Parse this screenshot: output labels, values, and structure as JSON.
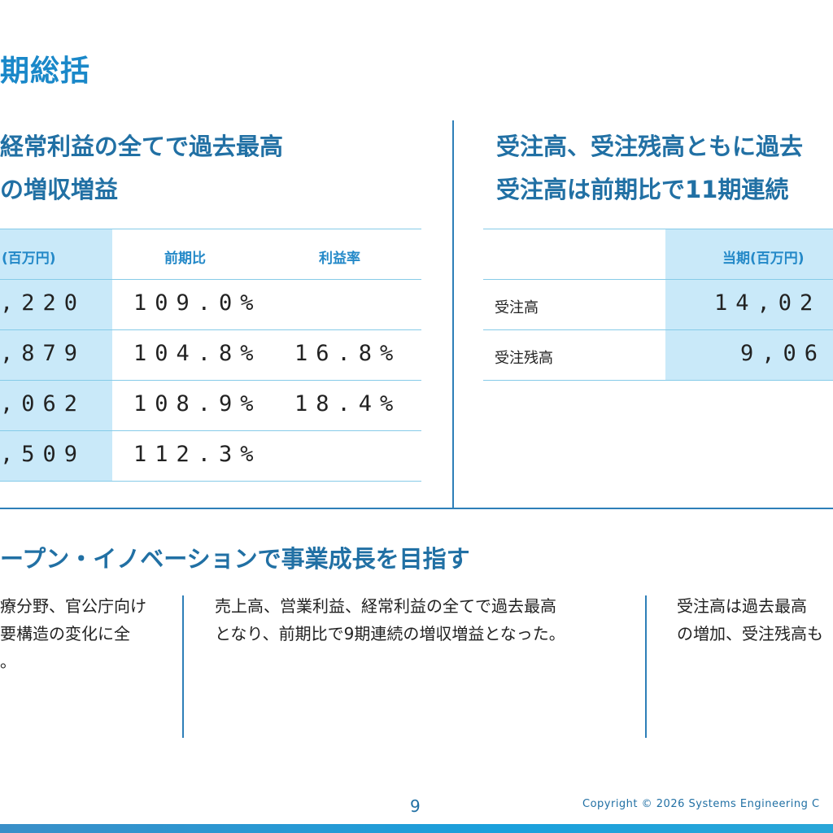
{
  "page": {
    "title": "期総括",
    "number": "9",
    "copyright": "Copyright © 2026 Systems Engineering C"
  },
  "left": {
    "headline_lines": [
      "経常利益の全てで過去最高",
      "の増収増益"
    ],
    "table": {
      "headers": [
        "(百万円)",
        "前期比",
        "利益率"
      ],
      "rows": [
        {
          "current": ",220",
          "yoy": "109.0%",
          "margin": ""
        },
        {
          "current": ",879",
          "yoy": "104.8%",
          "margin": "16.8%"
        },
        {
          "current": ",062",
          "yoy": "108.9%",
          "margin": "18.4%"
        },
        {
          "current": ",509",
          "yoy": "112.3%",
          "margin": ""
        }
      ]
    }
  },
  "right": {
    "headline_lines": [
      "受注高、受注残高ともに過去",
      "受注高は前期比で11期連続"
    ],
    "table": {
      "header": "当期(百万円)",
      "rows": [
        {
          "label": "受注高",
          "value": "14,02"
        },
        {
          "label": "受注残高",
          "value": "9,06"
        }
      ]
    }
  },
  "bottom": {
    "heading": "ープン・イノベーションで事業成長を目指す",
    "col1_lines": [
      "療分野、官公庁向け",
      "要構造の変化に全",
      "。"
    ],
    "col2_lines": [
      "売上高、営業利益、経常利益の全てで過去最高",
      "となり、前期比で9期連続の増収増益となった。"
    ],
    "col3_lines": [
      "受注高は過去最高",
      "の増加、受注残高も"
    ]
  },
  "colors": {
    "accent": "#1a88c9",
    "heading": "#2170a4",
    "divider": "#2e7fb8",
    "table_line": "#86cbe8",
    "shade": "#c9e9f9"
  }
}
